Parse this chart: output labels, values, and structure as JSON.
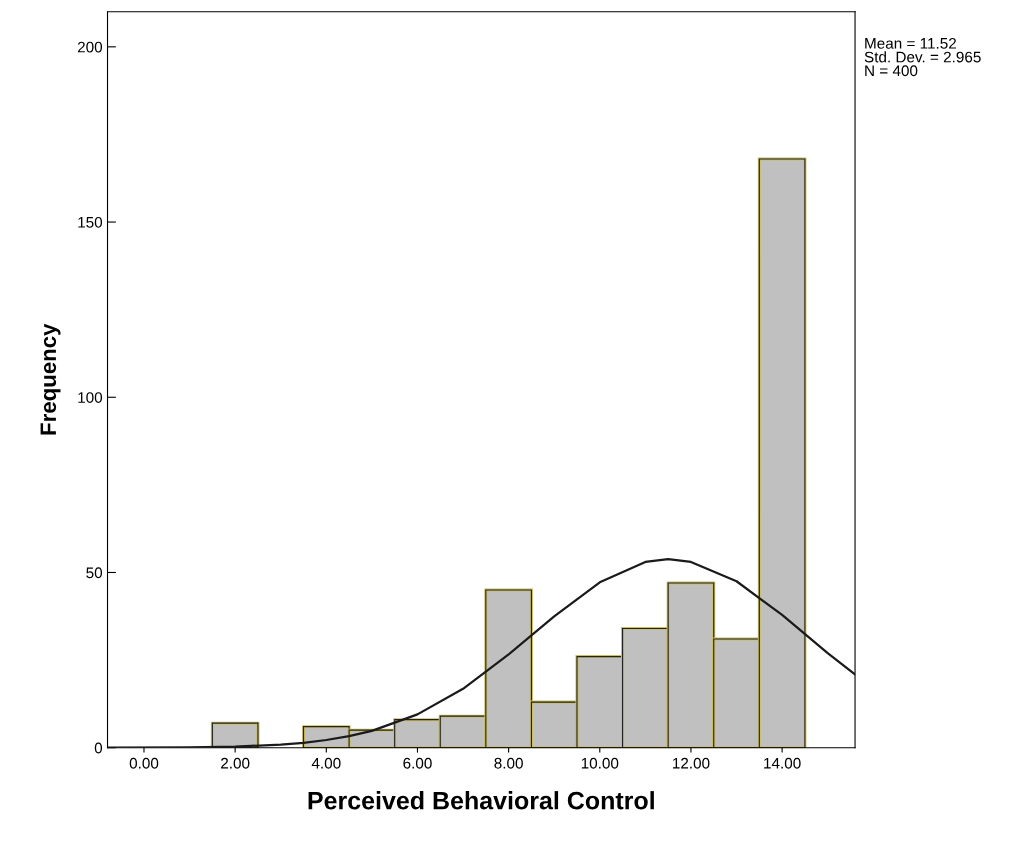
{
  "chart_data": {
    "type": "histogram",
    "xlabel": "Perceived Behavioral Control",
    "ylabel": "Frequency",
    "bins": [
      1.5,
      2.5,
      3.5,
      4.5,
      5.5,
      6.5,
      7.5,
      8.5,
      9.5,
      10.5,
      11.5,
      12.5,
      13.5,
      14.5
    ],
    "values": [
      7,
      0,
      6,
      5,
      8,
      9,
      45,
      13,
      26,
      34,
      47,
      31,
      168
    ],
    "color": "#c0c0c0",
    "series": [
      {
        "type": "line",
        "color": "#1a1a1a",
        "x": [
          -0.8,
          1,
          2,
          3,
          3.5,
          4,
          4.5,
          5,
          6,
          7,
          8,
          9,
          10,
          11,
          11.5,
          12,
          13,
          14,
          15,
          15.6
        ],
        "values": [
          0,
          0.1,
          0.3,
          0.9,
          1.4,
          2.2,
          3.3,
          4.8,
          9.5,
          16.8,
          26.6,
          37.5,
          47.2,
          53,
          53.8,
          53,
          47.5,
          37.9,
          27,
          20.9
        ]
      }
    ],
    "xlim": [
      -0.8,
      15.6
    ],
    "ylim": [
      0,
      210
    ],
    "xticks": [
      {
        "value": 0,
        "label": "0.00"
      },
      {
        "value": 2,
        "label": "2.00"
      },
      {
        "value": 4,
        "label": "4.00"
      },
      {
        "value": 6,
        "label": "6.00"
      },
      {
        "value": 8,
        "label": "8.00"
      },
      {
        "value": 10,
        "label": "10.00"
      },
      {
        "value": 12,
        "label": "12.00"
      },
      {
        "value": 14,
        "label": "14.00"
      }
    ],
    "yticks": [
      0,
      50,
      100,
      150,
      200
    ],
    "annotations": [
      "Mean = 11.52\nStd. Dev. = 2.965\nN = 400"
    ],
    "grid": false,
    "legend": false
  }
}
